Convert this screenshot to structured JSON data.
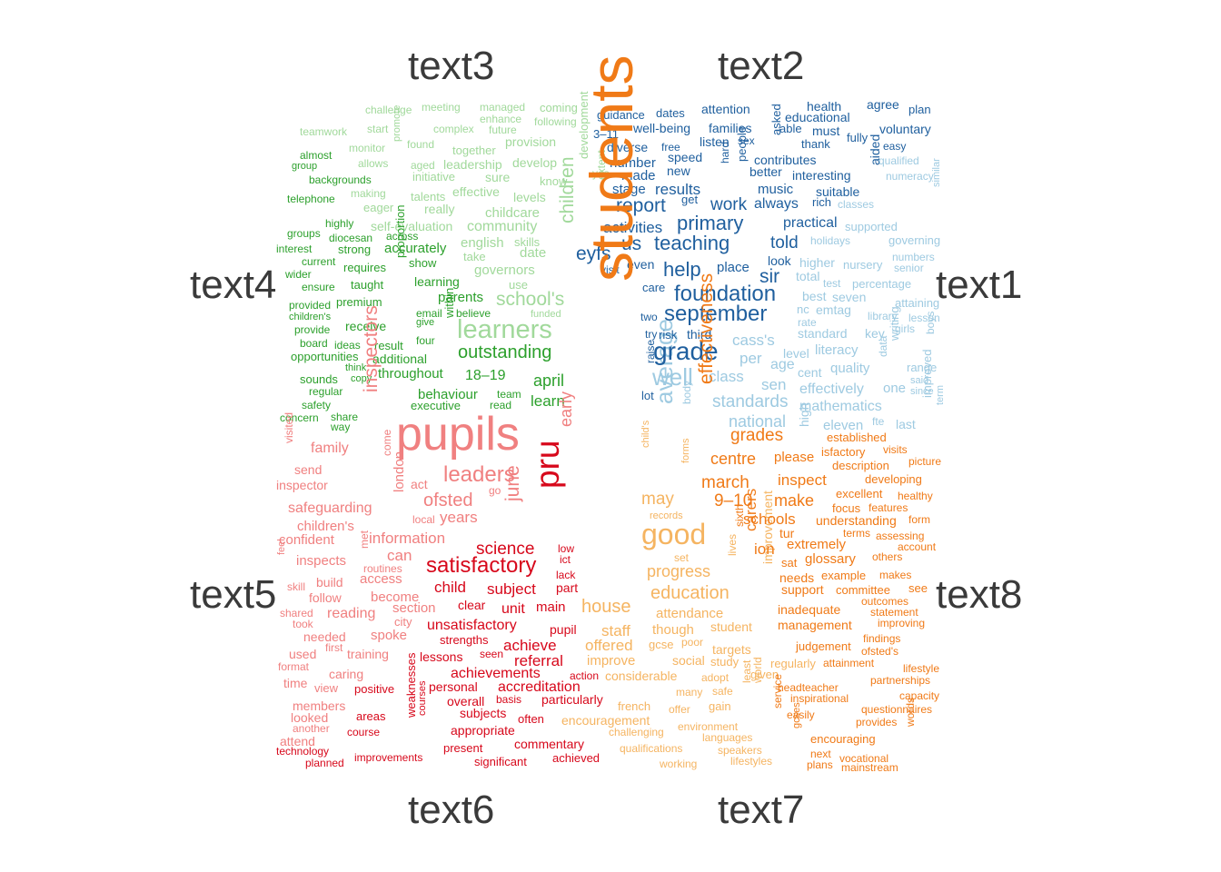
{
  "chart_data": {
    "type": "comparison-wordcloud",
    "groups": [
      {
        "name": "text1",
        "color": "#9ecae1",
        "words": [
          "well",
          "average",
          "cass's",
          "class",
          "sen",
          "per",
          "age",
          "standards",
          "national",
          "mathematics",
          "effectively",
          "quality",
          "eleven",
          "literacy",
          "level",
          "cent",
          "standard",
          "nc",
          "emtag",
          "rate",
          "best",
          "seven",
          "test",
          "percentage",
          "total",
          "higher",
          "nursery",
          "senior",
          "numbers",
          "governing",
          "holidays",
          "supported",
          "classes",
          "similar",
          "numeracy",
          "qualified",
          "library",
          "lesson",
          "girls",
          "key",
          "writing",
          "data",
          "range",
          "boys",
          "one",
          "said",
          "since",
          "improved",
          "term",
          "last",
          "fte",
          "high",
          "attaining",
          "body"
        ]
      },
      {
        "name": "text2",
        "color": "#1f5f9e",
        "words": [
          "grade",
          "september",
          "foundation",
          "help",
          "teaching",
          "primary",
          "us",
          "told",
          "report",
          "work",
          "sir",
          "eyfs",
          "activities",
          "even",
          "place",
          "practical",
          "look",
          "results",
          "stage",
          "always",
          "music",
          "suitable",
          "made",
          "number",
          "better",
          "interesting",
          "contributes",
          "new",
          "people",
          "hard",
          "aided",
          "visit",
          "care",
          "two",
          "try",
          "risk",
          "third",
          "lot",
          "raise",
          "get",
          "rich",
          "speed",
          "diverse",
          "free",
          "listen",
          "families",
          "sex",
          "asked",
          "able",
          "thank",
          "must",
          "fully",
          "easy",
          "guidance",
          "dates",
          "well-being",
          "attention",
          "educational",
          "health",
          "agree",
          "plan",
          "voluntary",
          "3–11"
        ]
      },
      {
        "name": "text3",
        "color": "#a1d99b",
        "words": [
          "learners",
          "school's",
          "children",
          "english",
          "community",
          "childcare",
          "date",
          "governors",
          "take",
          "skills",
          "use",
          "really",
          "effective",
          "levels",
          "development",
          "extent",
          "yes",
          "talents",
          "eager",
          "initiative",
          "sure",
          "know",
          "aged",
          "leadership",
          "develop",
          "together",
          "provision",
          "complex",
          "future",
          "enhance",
          "following",
          "managed",
          "coming",
          "meeting",
          "challenge",
          "teamwork",
          "start",
          "monitor",
          "found",
          "promote",
          "allows",
          "making",
          "self-evaluation",
          "funded"
        ]
      },
      {
        "name": "text4",
        "color": "#2ca02c",
        "words": [
          "outstanding",
          "april",
          "learn",
          "18–19",
          "behaviour",
          "team",
          "executive",
          "read",
          "parents",
          "believe",
          "learning",
          "accurately",
          "show",
          "proportion",
          "within",
          "email",
          "give",
          "four",
          "result",
          "additional",
          "throughout",
          "receive",
          "premium",
          "taught",
          "requires",
          "strong",
          "across",
          "diocesan",
          "highly",
          "groups",
          "interest",
          "current",
          "wider",
          "ensure",
          "provided",
          "children's",
          "provide",
          "board",
          "ideas",
          "opportunities",
          "think",
          "sounds",
          "copy",
          "regular",
          "safety",
          "concern",
          "share",
          "way",
          "telephone",
          "backgrounds",
          "group",
          "almost"
        ]
      },
      {
        "name": "text5",
        "color": "#f08080",
        "words": [
          "pupils",
          "inspectors",
          "leaders",
          "ofsted",
          "years",
          "family",
          "send",
          "inspector",
          "safeguarding",
          "children's",
          "confident",
          "information",
          "london",
          "come",
          "act",
          "can",
          "inspects",
          "build",
          "follow",
          "access",
          "become",
          "section",
          "reading",
          "shared",
          "took",
          "needed",
          "spoke",
          "used",
          "format",
          "training",
          "caring",
          "time",
          "view",
          "members",
          "looked",
          "another",
          "attend",
          "visited",
          "city",
          "local",
          "go",
          "june",
          "early",
          "met",
          "feel",
          "skill",
          "first",
          "routines"
        ]
      },
      {
        "name": "text6",
        "color": "#d7081b",
        "words": [
          "pru",
          "satisfactory",
          "science",
          "subject",
          "child",
          "unit",
          "main",
          "unsatisfactory",
          "pupil",
          "clear",
          "strengths",
          "achieve",
          "referral",
          "lessons",
          "seen",
          "achievements",
          "accreditation",
          "action",
          "personal",
          "overall",
          "particularly",
          "subjects",
          "basis",
          "often",
          "appropriate",
          "commentary",
          "achieved",
          "present",
          "significant",
          "improvements",
          "course",
          "areas",
          "positive",
          "weaknesses",
          "courses",
          "technology",
          "planned",
          "part",
          "lack",
          "low",
          "ict"
        ]
      },
      {
        "name": "text7",
        "color": "#f5b461",
        "words": [
          "good",
          "may",
          "house",
          "education",
          "progress",
          "staff",
          "though",
          "offered",
          "attendance",
          "student",
          "improve",
          "gcse",
          "poor",
          "social",
          "targets",
          "study",
          "considerable",
          "adopt",
          "safe",
          "gain",
          "many",
          "french",
          "encouragement",
          "challenging",
          "offer",
          "environment",
          "languages",
          "speakers",
          "lifestyles",
          "qualifications",
          "working",
          "improvement",
          "set",
          "lives",
          "records",
          "child's",
          "forms",
          "given",
          "regularly",
          "least",
          "world"
        ]
      },
      {
        "name": "text8",
        "color": "#f07a17",
        "words": [
          "students",
          "effectiveness",
          "grades",
          "centre",
          "march",
          "9–10",
          "schools",
          "carers",
          "inspect",
          "make",
          "please",
          "established",
          "isfactory",
          "description",
          "developing",
          "excellent",
          "focus",
          "understanding",
          "extremely",
          "glossary",
          "sat",
          "needs",
          "support",
          "example",
          "committee",
          "inadequate",
          "management",
          "judgement",
          "attainment",
          "headteacher",
          "inspirational",
          "easily",
          "provides",
          "encouraging",
          "vocational",
          "mainstream",
          "plans",
          "next",
          "gcses",
          "service",
          "visits",
          "picture",
          "healthy",
          "features",
          "form",
          "terms",
          "assessing",
          "account",
          "others",
          "makes",
          "outcomes",
          "statement",
          "improving",
          "findings",
          "ofsted's",
          "lifestyle",
          "partnerships",
          "capacity",
          "questionnaires",
          "words",
          "see",
          "tur",
          "sixth",
          "ion"
        ]
      }
    ]
  }
}
